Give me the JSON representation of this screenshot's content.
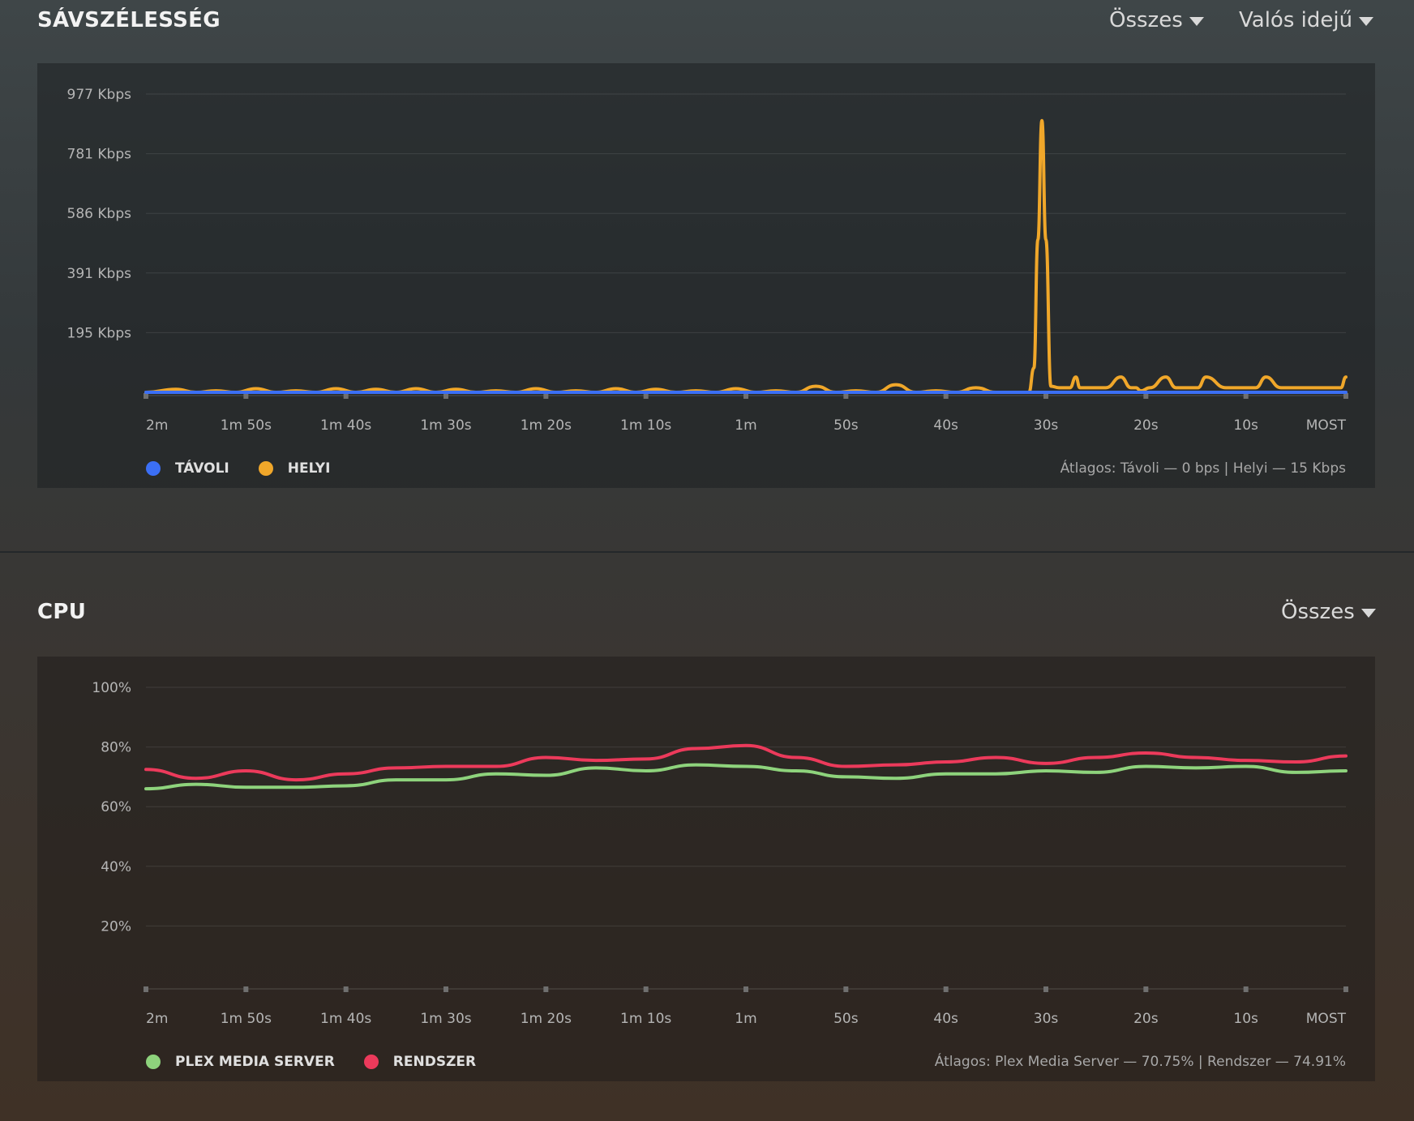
{
  "bandwidth": {
    "title": "SÁVSZÉLESSÉG",
    "filter_label": "Összes",
    "range_label": "Valós idejű",
    "average_text": "Átlagos: Távoli — 0 bps | Helyi — 15 Kbps",
    "legend": [
      {
        "label": "TÁVOLI",
        "color": "#3b6ff5"
      },
      {
        "label": "HELYI",
        "color": "#f0a72a"
      }
    ]
  },
  "cpu": {
    "title": "CPU",
    "filter_label": "Összes",
    "average_text": "Átlagos: Plex Media Server — 70.75% | Rendszer — 74.91%",
    "legend": [
      {
        "label": "PLEX MEDIA SERVER",
        "color": "#8ed37c"
      },
      {
        "label": "RENDSZER",
        "color": "#ec3a5b"
      }
    ]
  },
  "chart_data": [
    {
      "type": "line",
      "title": "SÁVSZÉLESSÉG",
      "x_ticks": [
        "2m",
        "1m 50s",
        "1m 40s",
        "1m 30s",
        "1m 20s",
        "1m 10s",
        "1m",
        "50s",
        "40s",
        "30s",
        "20s",
        "10s",
        "MOST"
      ],
      "y_ticks": [
        "977 Kbps",
        "781 Kbps",
        "586 Kbps",
        "391 Kbps",
        "195 Kbps"
      ],
      "ylim": [
        0,
        977
      ],
      "x_unit": "seconds ago",
      "grid": true,
      "legend_position": "bottom-left",
      "series": [
        {
          "name": "TÁVOLI",
          "color": "#3b6ff5",
          "x": [
            120,
            0
          ],
          "values": [
            0,
            0
          ]
        },
        {
          "name": "HELYI",
          "color": "#f0a72a",
          "x": [
            120,
            117,
            115,
            113,
            111,
            109,
            107,
            105,
            103,
            101,
            99,
            97,
            95,
            93,
            91,
            89,
            87,
            85,
            83,
            81,
            79,
            77,
            75,
            73,
            71,
            69,
            67,
            65,
            63,
            61,
            59,
            57,
            55,
            53,
            51,
            49,
            47,
            45,
            43,
            41,
            39,
            37,
            35,
            33,
            31.7,
            31.2,
            30.8,
            30.4,
            30,
            29.5,
            28.7,
            27.6,
            27,
            26.6,
            25.6,
            24.8,
            24,
            22.5,
            21.5,
            21,
            20.5,
            19.6,
            18,
            17,
            16,
            15.4,
            14.8,
            14,
            12,
            11,
            10.5,
            10,
            9,
            8,
            6.5,
            5.5,
            5,
            4.5,
            3.6,
            2,
            0.5,
            0
          ],
          "values": [
            0,
            10,
            0,
            5,
            0,
            12,
            0,
            5,
            0,
            12,
            0,
            10,
            0,
            12,
            0,
            10,
            0,
            5,
            0,
            12,
            0,
            5,
            0,
            12,
            0,
            10,
            0,
            5,
            0,
            12,
            0,
            5,
            0,
            20,
            0,
            5,
            0,
            25,
            0,
            5,
            0,
            15,
            0,
            0,
            0,
            80,
            500,
            890,
            500,
            20,
            15,
            15,
            50,
            15,
            15,
            15,
            15,
            50,
            15,
            15,
            5,
            15,
            50,
            15,
            15,
            15,
            15,
            50,
            15,
            15,
            15,
            15,
            15,
            50,
            15,
            15,
            15,
            15,
            15,
            15,
            15,
            50
          ]
        }
      ]
    },
    {
      "type": "line",
      "title": "CPU",
      "x_ticks": [
        "2m",
        "1m 50s",
        "1m 40s",
        "1m 30s",
        "1m 20s",
        "1m 10s",
        "1m",
        "50s",
        "40s",
        "30s",
        "20s",
        "10s",
        "MOST"
      ],
      "y_ticks": [
        "100%",
        "80%",
        "60%",
        "40%",
        "20%"
      ],
      "ylim": [
        0,
        100
      ],
      "x_unit": "seconds ago",
      "grid": true,
      "legend_position": "bottom-left",
      "series": [
        {
          "name": "PLEX MEDIA SERVER",
          "color": "#8ed37c",
          "x": [
            120,
            115,
            110,
            105,
            100,
            95,
            90,
            85,
            80,
            75,
            70,
            65,
            60,
            55,
            50,
            45,
            40,
            35,
            30,
            25,
            20,
            15,
            10,
            5,
            0
          ],
          "values": [
            66,
            67.5,
            66.5,
            66.5,
            67,
            69,
            69,
            71,
            70.5,
            73,
            72,
            74,
            73.5,
            72,
            70,
            69.5,
            71,
            71,
            72,
            71.5,
            73.5,
            73,
            73.5,
            71.5,
            72
          ]
        },
        {
          "name": "RENDSZER",
          "color": "#ec3a5b",
          "x": [
            120,
            115,
            110,
            105,
            100,
            95,
            90,
            85,
            80,
            75,
            70,
            65,
            60,
            55,
            50,
            45,
            40,
            35,
            30,
            25,
            20,
            15,
            10,
            5,
            0
          ],
          "values": [
            72.5,
            69.5,
            72,
            69,
            71,
            73,
            73.5,
            73.5,
            76.5,
            75.5,
            76,
            79.5,
            80.5,
            76.5,
            73.5,
            74,
            75,
            76.5,
            74.5,
            76.5,
            78,
            76.5,
            75.5,
            75,
            77
          ]
        }
      ]
    }
  ]
}
